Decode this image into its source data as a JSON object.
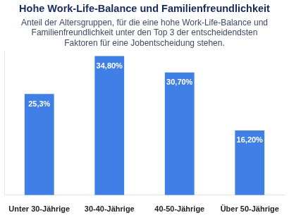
{
  "chart_data": {
    "type": "bar",
    "subtitle": [
      "Anteil der Altersgruppen, für die eine hohe Work-Life-Balance und",
      "Familienfreundlichkeit unter den Top 3 der entscheidendsten",
      "Faktoren für eine Jobentscheidung stehen."
    ],
    "title": "Hohe Work-Life-Balance und Familienfreundlichkeit",
    "categories": [
      "Unter 30-Jährige",
      "30-40-Jährige",
      "40-50-Jährige",
      "Über 50-Jährige"
    ],
    "values": [
      25.3,
      34.8,
      30.7,
      16.2
    ],
    "value_labels": [
      "25,3%",
      "34,80%",
      "30,70%",
      "16,20%"
    ],
    "color": "#3f7fe6",
    "ylim": [
      0,
      36
    ],
    "grid": false,
    "data_labels": true,
    "tick_labels": "x"
  }
}
